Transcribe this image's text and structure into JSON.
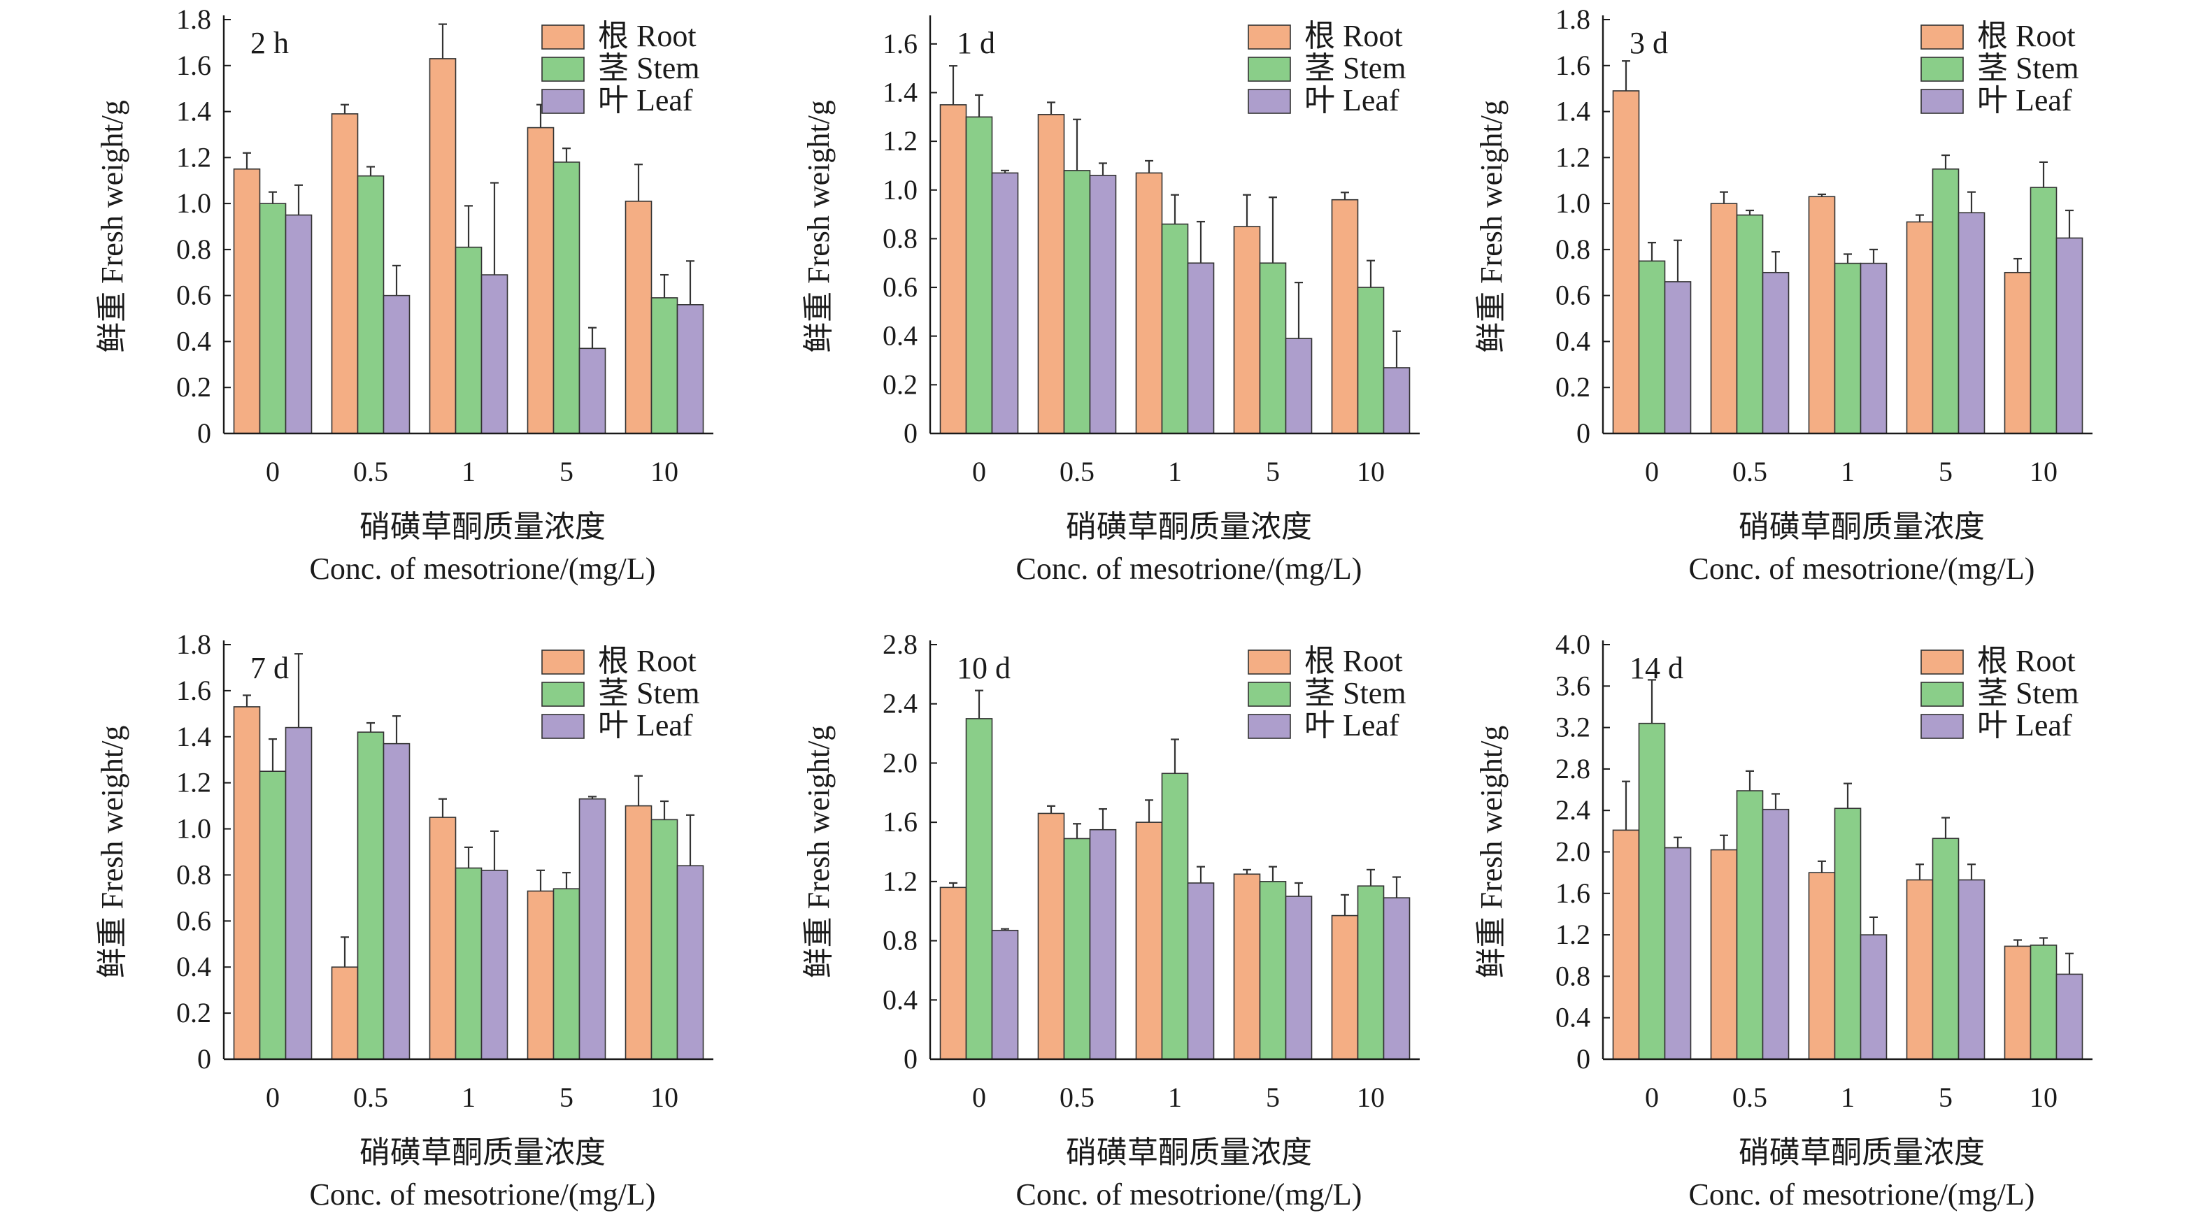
{
  "colors": {
    "root": "#F4AE84",
    "stem": "#8ACE89",
    "leaf": "#AD9ECC",
    "stroke": "#333333",
    "error": "#333333"
  },
  "chart_data": [
    {
      "type": "bar",
      "title": "2 h",
      "categories": [
        "0",
        "0.5",
        "1",
        "5",
        "10"
      ],
      "ylabel": "鲜重 Fresh weight/g",
      "xlabel_cn": "硝磺草酮质量浓度",
      "xlabel_en": "Conc. of mesotrione/(mg/L)",
      "ylim": [
        0,
        1.8
      ],
      "yticks": [
        "0",
        "0.2",
        "0.4",
        "0.6",
        "0.8",
        "1.0",
        "1.2",
        "1.4",
        "1.6",
        "1.8"
      ],
      "legend_position": "top-right",
      "series": [
        {
          "name": "根 Root",
          "values": [
            1.15,
            1.39,
            1.63,
            1.33,
            1.01
          ],
          "errors": [
            0.07,
            0.04,
            0.15,
            0.1,
            0.16
          ]
        },
        {
          "name": "茎 Stem",
          "values": [
            1.0,
            1.12,
            0.81,
            1.18,
            0.59
          ],
          "errors": [
            0.05,
            0.04,
            0.18,
            0.06,
            0.1
          ]
        },
        {
          "name": "叶 Leaf",
          "values": [
            0.95,
            0.6,
            0.69,
            0.37,
            0.56
          ],
          "errors": [
            0.13,
            0.13,
            0.4,
            0.09,
            0.19
          ]
        }
      ]
    },
    {
      "type": "bar",
      "title": "1 d",
      "categories": [
        "0",
        "0.5",
        "1",
        "5",
        "10"
      ],
      "ylabel": "鲜重 Fresh weight/g",
      "xlabel_cn": "硝磺草酮质量浓度",
      "xlabel_en": "Conc. of mesotrione/(mg/L)",
      "ylim": [
        0,
        1.7
      ],
      "yticks": [
        "0",
        "0.2",
        "0.4",
        "0.6",
        "0.8",
        "1.0",
        "1.2",
        "1.4",
        "1.6"
      ],
      "legend_position": "top-right",
      "series": [
        {
          "name": "根 Root",
          "values": [
            1.35,
            1.31,
            1.07,
            0.85,
            0.96
          ],
          "errors": [
            0.16,
            0.05,
            0.05,
            0.13,
            0.03
          ]
        },
        {
          "name": "茎 Stem",
          "values": [
            1.3,
            1.08,
            0.86,
            0.7,
            0.6
          ],
          "errors": [
            0.09,
            0.21,
            0.12,
            0.27,
            0.11
          ]
        },
        {
          "name": "叶 Leaf",
          "values": [
            1.07,
            1.06,
            0.7,
            0.39,
            0.27
          ],
          "errors": [
            0.01,
            0.05,
            0.17,
            0.23,
            0.15
          ]
        }
      ]
    },
    {
      "type": "bar",
      "title": "3 d",
      "categories": [
        "0",
        "0.5",
        "1",
        "5",
        "10"
      ],
      "ylabel": "鲜重 Fresh weight/g",
      "xlabel_cn": "硝磺草酮质量浓度",
      "xlabel_en": "Conc. of mesotrione/(mg/L)",
      "ylim": [
        0,
        1.8
      ],
      "yticks": [
        "0",
        "0.2",
        "0.4",
        "0.6",
        "0.8",
        "1.0",
        "1.2",
        "1.4",
        "1.6",
        "1.8"
      ],
      "legend_position": "top-right",
      "series": [
        {
          "name": "根 Root",
          "values": [
            1.49,
            1.0,
            1.03,
            0.92,
            0.7
          ],
          "errors": [
            0.13,
            0.05,
            0.01,
            0.03,
            0.06
          ]
        },
        {
          "name": "茎 Stem",
          "values": [
            0.75,
            0.95,
            0.74,
            1.15,
            1.07
          ],
          "errors": [
            0.08,
            0.02,
            0.04,
            0.06,
            0.11
          ]
        },
        {
          "name": "叶 Leaf",
          "values": [
            0.66,
            0.7,
            0.74,
            0.96,
            0.85
          ],
          "errors": [
            0.18,
            0.09,
            0.06,
            0.09,
            0.12
          ]
        }
      ]
    },
    {
      "type": "bar",
      "title": "7 d",
      "categories": [
        "0",
        "0.5",
        "1",
        "5",
        "10"
      ],
      "ylabel": "鲜重 Fresh weight/g",
      "xlabel_cn": "硝磺草酮质量浓度",
      "xlabel_en": "Conc. of mesotrione/(mg/L)",
      "ylim": [
        0,
        1.8
      ],
      "yticks": [
        "0",
        "0.2",
        "0.4",
        "0.6",
        "0.8",
        "1.0",
        "1.2",
        "1.4",
        "1.6",
        "1.8"
      ],
      "legend_position": "top-right",
      "series": [
        {
          "name": "根 Root",
          "values": [
            1.53,
            0.4,
            1.05,
            0.73,
            1.1
          ],
          "errors": [
            0.05,
            0.13,
            0.08,
            0.09,
            0.13
          ]
        },
        {
          "name": "茎 Stem",
          "values": [
            1.25,
            1.42,
            0.83,
            0.74,
            1.04
          ],
          "errors": [
            0.14,
            0.04,
            0.09,
            0.07,
            0.08
          ]
        },
        {
          "name": "叶 Leaf",
          "values": [
            1.44,
            1.37,
            0.82,
            1.13,
            0.84
          ],
          "errors": [
            0.32,
            0.12,
            0.17,
            0.01,
            0.22
          ]
        }
      ]
    },
    {
      "type": "bar",
      "title": "10 d",
      "categories": [
        "0",
        "0.5",
        "1",
        "5",
        "10"
      ],
      "ylabel": "鲜重 Fresh weight/g",
      "xlabel_cn": "硝磺草酮质量浓度",
      "xlabel_en": "Conc. of mesotrione/(mg/L)",
      "ylim": [
        0,
        2.8
      ],
      "yticks": [
        "0",
        "0.4",
        "0.8",
        "1.2",
        "1.6",
        "2.0",
        "2.4",
        "2.8"
      ],
      "legend_position": "top-right",
      "series": [
        {
          "name": "根 Root",
          "values": [
            1.16,
            1.66,
            1.6,
            1.25,
            0.97
          ],
          "errors": [
            0.03,
            0.05,
            0.15,
            0.03,
            0.14
          ]
        },
        {
          "name": "茎 Stem",
          "values": [
            2.3,
            1.49,
            1.93,
            1.2,
            1.17
          ],
          "errors": [
            0.19,
            0.1,
            0.23,
            0.1,
            0.11
          ]
        },
        {
          "name": "叶 Leaf",
          "values": [
            0.87,
            1.55,
            1.19,
            1.1,
            1.09
          ],
          "errors": [
            0.01,
            0.14,
            0.11,
            0.09,
            0.14
          ]
        }
      ]
    },
    {
      "type": "bar",
      "title": "14 d",
      "categories": [
        "0",
        "0.5",
        "1",
        "5",
        "10"
      ],
      "ylabel": "鲜重 Fresh weight/g",
      "xlabel_cn": "硝磺草酮质量浓度",
      "xlabel_en": "Conc. of mesotrione/(mg/L)",
      "ylim": [
        0,
        4.0
      ],
      "yticks": [
        "0",
        "0.4",
        "0.8",
        "1.2",
        "1.6",
        "2.0",
        "2.4",
        "2.8",
        "3.2",
        "3.6",
        "4.0"
      ],
      "legend_position": "top-right",
      "series": [
        {
          "name": "根 Root",
          "values": [
            2.21,
            2.02,
            1.8,
            1.73,
            1.09
          ],
          "errors": [
            0.47,
            0.14,
            0.11,
            0.15,
            0.06
          ]
        },
        {
          "name": "茎 Stem",
          "values": [
            3.24,
            2.59,
            2.42,
            2.13,
            1.1
          ],
          "errors": [
            0.42,
            0.19,
            0.24,
            0.2,
            0.07
          ]
        },
        {
          "name": "叶 Leaf",
          "values": [
            2.04,
            2.41,
            1.2,
            1.73,
            0.82
          ],
          "errors": [
            0.1,
            0.15,
            0.17,
            0.15,
            0.2
          ]
        }
      ]
    }
  ]
}
